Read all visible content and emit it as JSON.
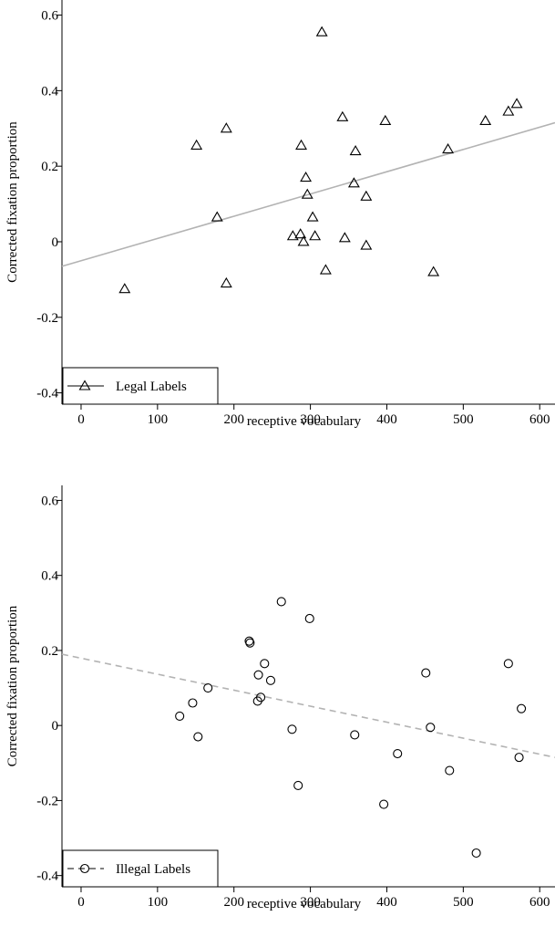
{
  "chart_data": [
    {
      "type": "scatter",
      "title": "",
      "xlabel": "receptive vocabulary",
      "ylabel": "Corrected fixation proportion",
      "xlim": [
        -25,
        620
      ],
      "ylim": [
        -0.43,
        0.64
      ],
      "x_ticks": [
        "0",
        "100",
        "200",
        "300",
        "400",
        "500",
        "600"
      ],
      "y_ticks": [
        "0.6",
        "0.4",
        "0.2",
        "0",
        "-0.2",
        "-0.4"
      ],
      "legend": "bottom-left",
      "series": [
        {
          "name": "Legal Labels",
          "marker": "triangle",
          "fit_line": "solid",
          "fit": [
            [
              -25,
              -0.065
            ],
            [
              620,
              0.315
            ]
          ],
          "points": [
            [
              57,
              -0.125
            ],
            [
              151,
              0.255
            ],
            [
              178,
              0.065
            ],
            [
              190,
              0.3
            ],
            [
              190,
              -0.11
            ],
            [
              277,
              0.015
            ],
            [
              287,
              0.02
            ],
            [
              288,
              0.255
            ],
            [
              291,
              0.0
            ],
            [
              294,
              0.17
            ],
            [
              296,
              0.125
            ],
            [
              303,
              0.065
            ],
            [
              306,
              0.015
            ],
            [
              315,
              0.555
            ],
            [
              320,
              -0.075
            ],
            [
              342,
              0.33
            ],
            [
              345,
              0.01
            ],
            [
              357,
              0.155
            ],
            [
              359,
              0.24
            ],
            [
              373,
              0.12
            ],
            [
              373,
              -0.01
            ],
            [
              398,
              0.32
            ],
            [
              461,
              -0.08
            ],
            [
              480,
              0.245
            ],
            [
              529,
              0.32
            ],
            [
              559,
              0.345
            ],
            [
              570,
              0.365
            ]
          ]
        }
      ]
    },
    {
      "type": "scatter",
      "title": "",
      "xlabel": "receptive vocabulary",
      "ylabel": "Corrected fixation proportion",
      "xlim": [
        -25,
        620
      ],
      "ylim": [
        -0.43,
        0.64
      ],
      "x_ticks": [
        "0",
        "100",
        "200",
        "300",
        "400",
        "500",
        "600"
      ],
      "y_ticks": [
        "0.6",
        "0.4",
        "0.2",
        "0",
        "-0.2",
        "-0.4"
      ],
      "legend": "bottom-left",
      "series": [
        {
          "name": "Illegal Labels",
          "marker": "circle",
          "fit_line": "dashed",
          "fit": [
            [
              -25,
              0.19
            ],
            [
              620,
              -0.085
            ]
          ],
          "points": [
            [
              129,
              0.025
            ],
            [
              146,
              0.06
            ],
            [
              153,
              -0.03
            ],
            [
              166,
              0.1
            ],
            [
              220,
              0.225
            ],
            [
              221,
              0.22
            ],
            [
              231,
              0.065
            ],
            [
              232,
              0.135
            ],
            [
              235,
              0.075
            ],
            [
              240,
              0.165
            ],
            [
              248,
              0.12
            ],
            [
              262,
              0.33
            ],
            [
              276,
              -0.01
            ],
            [
              284,
              -0.16
            ],
            [
              299,
              0.285
            ],
            [
              358,
              -0.025
            ],
            [
              396,
              -0.21
            ],
            [
              414,
              -0.075
            ],
            [
              451,
              0.14
            ],
            [
              457,
              -0.005
            ],
            [
              482,
              -0.12
            ],
            [
              517,
              -0.34
            ],
            [
              559,
              0.165
            ],
            [
              573,
              -0.085
            ],
            [
              576,
              0.045
            ]
          ]
        }
      ]
    }
  ]
}
